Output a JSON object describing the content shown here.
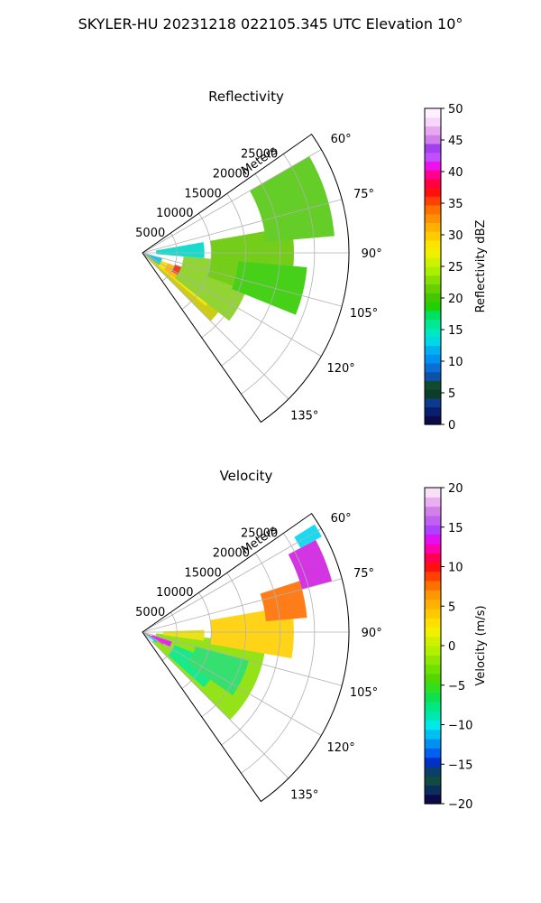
{
  "suptitle": "SKYLER-HU  20231218  022105.345 UTC Elevation 10°",
  "chart_data": [
    {
      "type": "heatmap",
      "projection": "polar-sector",
      "title": "Reflectivity",
      "radial_label": "Meters",
      "radial_ticks": [
        5000,
        10000,
        15000,
        20000,
        25000
      ],
      "radial_tick_labels": [
        "5000",
        "10000",
        "15000",
        "20000",
        "25000"
      ],
      "rlim": [
        0,
        30000
      ],
      "azimuth_range_deg": [
        55,
        145
      ],
      "azimuth_ticks": [
        60,
        75,
        90,
        105,
        120,
        135
      ],
      "azimuth_tick_labels": [
        "60°",
        "75°",
        "90°",
        "105°",
        "120°",
        "135°"
      ],
      "grid": true,
      "colorbar": {
        "label": "Reflectivity dBZ",
        "range": [
          0,
          50
        ],
        "ticks": [
          0,
          5,
          10,
          15,
          20,
          25,
          30,
          35,
          40,
          45,
          50
        ],
        "tick_labels": [
          "0",
          "5",
          "10",
          "15",
          "20",
          "25",
          "30",
          "35",
          "40",
          "45",
          "50"
        ],
        "colors": [
          "#0b0b4a",
          "#0a1e70",
          "#0b3b8c",
          "#0d3d28",
          "#104a30",
          "#0b52a8",
          "#0b6ed6",
          "#0090f0",
          "#00b0f0",
          "#00d8e8",
          "#00e8c0",
          "#00e890",
          "#00e060",
          "#22d000",
          "#44c800",
          "#66d000",
          "#88e000",
          "#aaee00",
          "#ccf200",
          "#eef000",
          "#ffe400",
          "#ffcc00",
          "#ffb000",
          "#ff9000",
          "#ff7000",
          "#ff4000",
          "#ff1010",
          "#ff0040",
          "#ff0090",
          "#ee10ee",
          "#c050ff",
          "#a040f0",
          "#d080e8",
          "#e8a8f0",
          "#f6d6fa",
          "#fff0ff"
        ]
      },
      "regions": [
        {
          "color": "#c8c800",
          "az": [
            118,
            135
          ],
          "r": [
            0,
            14000
          ]
        },
        {
          "color": "#f2e000",
          "az": [
            112,
            130
          ],
          "r": [
            3000,
            12000
          ]
        },
        {
          "color": "#ffb000",
          "az": [
            112,
            128
          ],
          "r": [
            4000,
            10000
          ]
        },
        {
          "color": "#e03010",
          "az": [
            110,
            122
          ],
          "r": [
            5000,
            9500
          ]
        },
        {
          "color": "#88d020",
          "az": [
            95,
            128
          ],
          "r": [
            6000,
            16000
          ]
        },
        {
          "color": "#66c800",
          "az": [
            80,
            110
          ],
          "r": [
            10000,
            22000
          ]
        },
        {
          "color": "#55c810",
          "az": [
            60,
            85
          ],
          "r": [
            18000,
            28000
          ]
        },
        {
          "color": "#00d8c8",
          "az": [
            80,
            95
          ],
          "r": [
            2000,
            9000
          ]
        },
        {
          "color": "#33cc00",
          "az": [
            95,
            112
          ],
          "r": [
            14000,
            24000
          ]
        },
        {
          "color": "#00c0e8",
          "az": [
            105,
            125
          ],
          "r": [
            0,
            3000
          ]
        }
      ]
    },
    {
      "type": "heatmap",
      "projection": "polar-sector",
      "title": "Velocity",
      "radial_label": "Meters",
      "radial_ticks": [
        5000,
        10000,
        15000,
        20000,
        25000
      ],
      "radial_tick_labels": [
        "5000",
        "10000",
        "15000",
        "20000",
        "25000"
      ],
      "rlim": [
        0,
        30000
      ],
      "azimuth_range_deg": [
        55,
        145
      ],
      "azimuth_ticks": [
        60,
        75,
        90,
        105,
        120,
        135
      ],
      "azimuth_tick_labels": [
        "60°",
        "75°",
        "90°",
        "105°",
        "120°",
        "135°"
      ],
      "grid": true,
      "colorbar": {
        "label": "Velocity (m/s)",
        "range": [
          -20,
          20
        ],
        "ticks": [
          -20,
          -15,
          -10,
          -5,
          0,
          5,
          10,
          15,
          20
        ],
        "tick_labels": [
          "−20",
          "−15",
          "−10",
          "−5",
          "0",
          "5",
          "10",
          "15",
          "20"
        ],
        "colors": [
          "#0b0b4a",
          "#0b2e5a",
          "#104a40",
          "#0a3f6a",
          "#0030c8",
          "#0060f0",
          "#0090f0",
          "#00c0f0",
          "#00e8e8",
          "#00e8b0",
          "#00e880",
          "#10e050",
          "#30e020",
          "#50d800",
          "#70e000",
          "#90e800",
          "#b0f000",
          "#d0f000",
          "#f0f000",
          "#ffe000",
          "#ffc800",
          "#ffb000",
          "#ff9800",
          "#ff7000",
          "#ff4000",
          "#ff1010",
          "#ff0050",
          "#ff00b0",
          "#e010f0",
          "#b040ff",
          "#c060f0",
          "#d080e8",
          "#e8b0f0",
          "#f8e0f8"
        ]
      },
      "regions": [
        {
          "color": "#88e000",
          "az": [
            95,
            135
          ],
          "r": [
            2000,
            18000
          ]
        },
        {
          "color": "#00e880",
          "az": [
            112,
            132
          ],
          "r": [
            5000,
            12000
          ]
        },
        {
          "color": "#20dd60",
          "az": [
            105,
            125
          ],
          "r": [
            8000,
            16000
          ]
        },
        {
          "color": "#ffd000",
          "az": [
            80,
            100
          ],
          "r": [
            10000,
            22000
          ]
        },
        {
          "color": "#ff7000",
          "az": [
            72,
            85
          ],
          "r": [
            18000,
            24000
          ]
        },
        {
          "color": "#d020e0",
          "az": [
            62,
            75
          ],
          "r": [
            24000,
            28500
          ]
        },
        {
          "color": "#00d8f0",
          "az": [
            58,
            62
          ],
          "r": [
            26000,
            29500
          ]
        },
        {
          "color": "#ff0060",
          "az": [
            112,
            122
          ],
          "r": [
            0,
            3500
          ]
        },
        {
          "color": "#00c8f0",
          "az": [
            116,
            128
          ],
          "r": [
            0,
            2500
          ]
        },
        {
          "color": "#e010f0",
          "az": [
            108,
            118
          ],
          "r": [
            1500,
            4500
          ]
        },
        {
          "color": "#e8e000",
          "az": [
            88,
            98
          ],
          "r": [
            3000,
            9000
          ]
        }
      ]
    }
  ]
}
